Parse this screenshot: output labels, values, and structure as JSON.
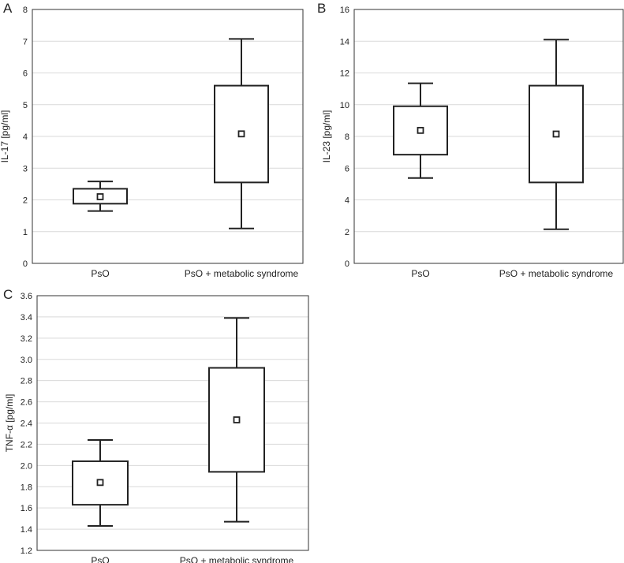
{
  "chart_data": [
    {
      "panel_label": "A",
      "type": "box",
      "ylabel": "IL-17 [pg/ml]",
      "ylim": [
        0,
        8
      ],
      "yticks": [
        "0",
        "1",
        "2",
        "3",
        "4",
        "5",
        "6",
        "7",
        "8"
      ],
      "grid": true,
      "categories": [
        "PsO",
        "PsO + metabolic syndrome"
      ],
      "boxes": [
        {
          "whisker_low": 1.65,
          "q1": 1.88,
          "mean": 2.1,
          "q3": 2.35,
          "whisker_high": 2.58
        },
        {
          "whisker_low": 1.1,
          "q1": 2.55,
          "mean": 4.08,
          "q3": 5.6,
          "whisker_high": 7.07
        }
      ]
    },
    {
      "panel_label": "B",
      "type": "box",
      "ylabel": "IL-23 [pg/ml]",
      "ylim": [
        0,
        16
      ],
      "yticks": [
        "0",
        "2",
        "4",
        "6",
        "8",
        "10",
        "12",
        "14",
        "16"
      ],
      "grid": true,
      "categories": [
        "PsO",
        "PsO + metabolic syndrome"
      ],
      "boxes": [
        {
          "whisker_low": 5.38,
          "q1": 6.85,
          "mean": 8.38,
          "q3": 9.9,
          "whisker_high": 11.35
        },
        {
          "whisker_low": 2.15,
          "q1": 5.1,
          "mean": 8.15,
          "q3": 11.2,
          "whisker_high": 14.1
        }
      ]
    },
    {
      "panel_label": "C",
      "type": "box",
      "ylabel": "TNF-α [pg/ml]",
      "ylim": [
        1.2,
        3.6
      ],
      "yticks": [
        "1.2",
        "1.4",
        "1.6",
        "1.8",
        "2.0",
        "2.2",
        "2.4",
        "2.6",
        "2.8",
        "3.0",
        "3.2",
        "3.4",
        "3.6"
      ],
      "grid": true,
      "categories": [
        "PsO",
        "PsO + metabolic syndrome"
      ],
      "boxes": [
        {
          "whisker_low": 1.43,
          "q1": 1.63,
          "mean": 1.84,
          "q3": 2.04,
          "whisker_high": 2.24
        },
        {
          "whisker_low": 1.47,
          "q1": 1.94,
          "mean": 2.43,
          "q3": 2.92,
          "whisker_high": 3.39
        }
      ]
    }
  ]
}
